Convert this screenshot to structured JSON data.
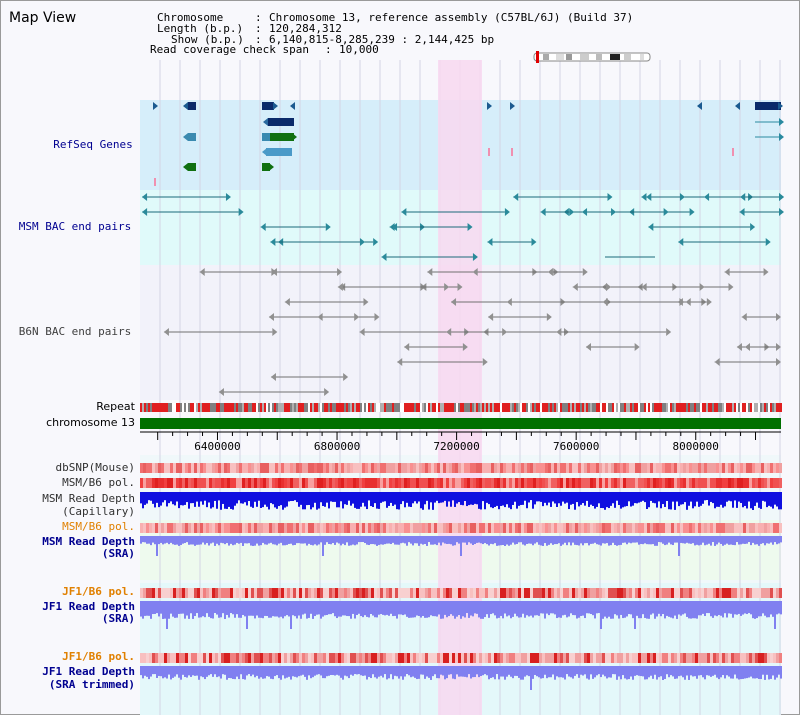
{
  "view": {
    "title": "Map View"
  },
  "info": {
    "chromosome_key": "Chromosome",
    "chromosome_val": "Chromosome 13, reference assembly (C57BL/6J) (Build 37)",
    "length_key": "Length (b.p.)",
    "length_val": "120,284,312",
    "show_key": "Show (b.p.)",
    "show_val": "6,140,815-8,285,239 : 2,144,425 bp",
    "span_key": "Read coverage check span",
    "span_val": "10,000"
  },
  "tracks": {
    "refseq": "RefSeq Genes",
    "msm_bac": "MSM BAC end pairs",
    "b6n_bac": "B6N BAC end pairs",
    "repeat": "Repeat",
    "chromosome": "chromosome 13",
    "dbsnp": "dbSNP(Mouse)",
    "msm_b6_pol_1": "MSM/B6 pol.",
    "msm_depth_cap_1": "MSM Read Depth",
    "msm_depth_cap_2": "(Capillary)",
    "msm_b6_pol_2": "MSM/B6 pol.",
    "msm_depth_sra_1": "MSM Read Depth",
    "msm_depth_sra_2": "(SRA)",
    "jf1_b6_pol_1": "JF1/B6 pol.",
    "jf1_depth_sra_1": "JF1 Read Depth",
    "jf1_depth_sra_2": "(SRA)",
    "jf1_b6_pol_2": "JF1/B6 pol.",
    "jf1_depth_trim_1": "JF1 Read Depth",
    "jf1_depth_trim_2": "(SRA trimmed)"
  },
  "axis": {
    "unit": "bp",
    "ticks": [
      {
        "pos": 6400000,
        "label": "6400000"
      },
      {
        "pos": 6800000,
        "label": "6800000"
      },
      {
        "pos": 7200000,
        "label": "7200000"
      },
      {
        "pos": 7600000,
        "label": "7600000"
      },
      {
        "pos": 8000000,
        "label": "8000000"
      }
    ]
  },
  "colors": {
    "refseq_bg": "#d6eefa",
    "msm_bg": "#e0fafa",
    "b6n_bg": "#f2f2fa",
    "highlight": "#f8d8f0",
    "chromosome_bar": "#007000",
    "msm_depth": "#1010e0",
    "sra_depth": "#8080f0",
    "label_blue": "#000090",
    "label_orange": "#e08000"
  }
}
